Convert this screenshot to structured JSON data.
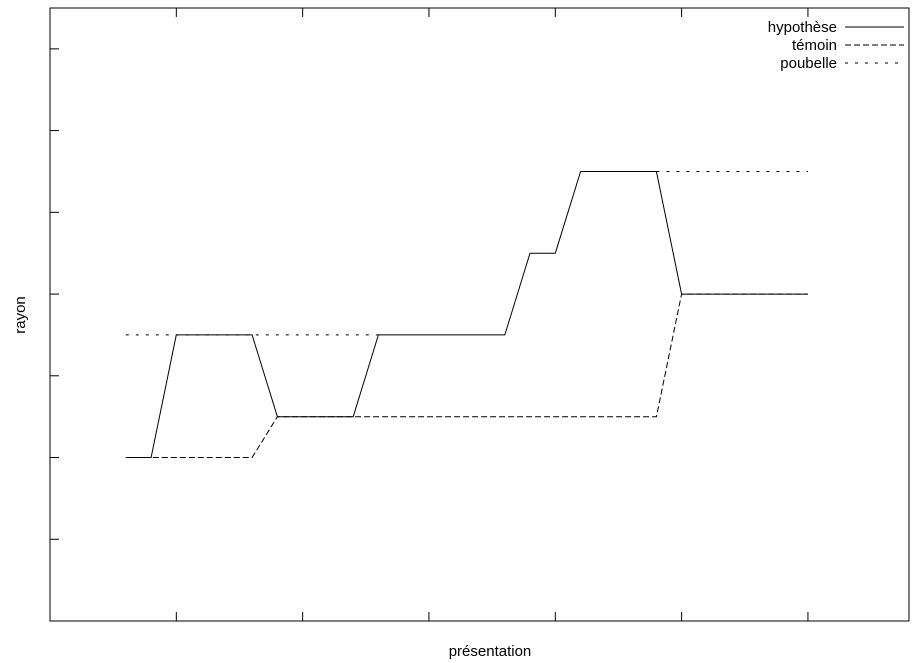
{
  "chart_data": {
    "type": "line",
    "title": "",
    "xlabel": "présentation",
    "ylabel": "rayon",
    "xlim": [
      0,
      34
    ],
    "ylim": [
      0,
      15
    ],
    "xticks": [
      5,
      10,
      15,
      20,
      25,
      30
    ],
    "yticks": [
      2,
      4,
      6,
      8,
      10,
      12,
      14
    ],
    "grid": false,
    "legend_position": "top-right",
    "series": [
      {
        "name": "hypothèse",
        "style": "solid",
        "color": "#000000",
        "x": [
          3,
          4,
          5,
          8,
          9,
          12,
          13,
          18,
          19,
          20,
          21,
          24,
          25,
          30
        ],
        "y": [
          4,
          4,
          7,
          7,
          5,
          5,
          7,
          7,
          9,
          9,
          11,
          11,
          8,
          8
        ]
      },
      {
        "name": "témoin",
        "style": "dashed",
        "color": "#000000",
        "x": [
          3,
          8,
          9,
          24,
          25,
          30
        ],
        "y": [
          4,
          4,
          5,
          5,
          8,
          8
        ]
      },
      {
        "name": "poubelle",
        "style": "dotted",
        "color": "#000000",
        "segments": [
          {
            "x": [
              3,
              13
            ],
            "y": [
              7,
              7
            ]
          },
          {
            "x": [
              24,
              30
            ],
            "y": [
              11,
              11
            ]
          }
        ]
      }
    ]
  }
}
